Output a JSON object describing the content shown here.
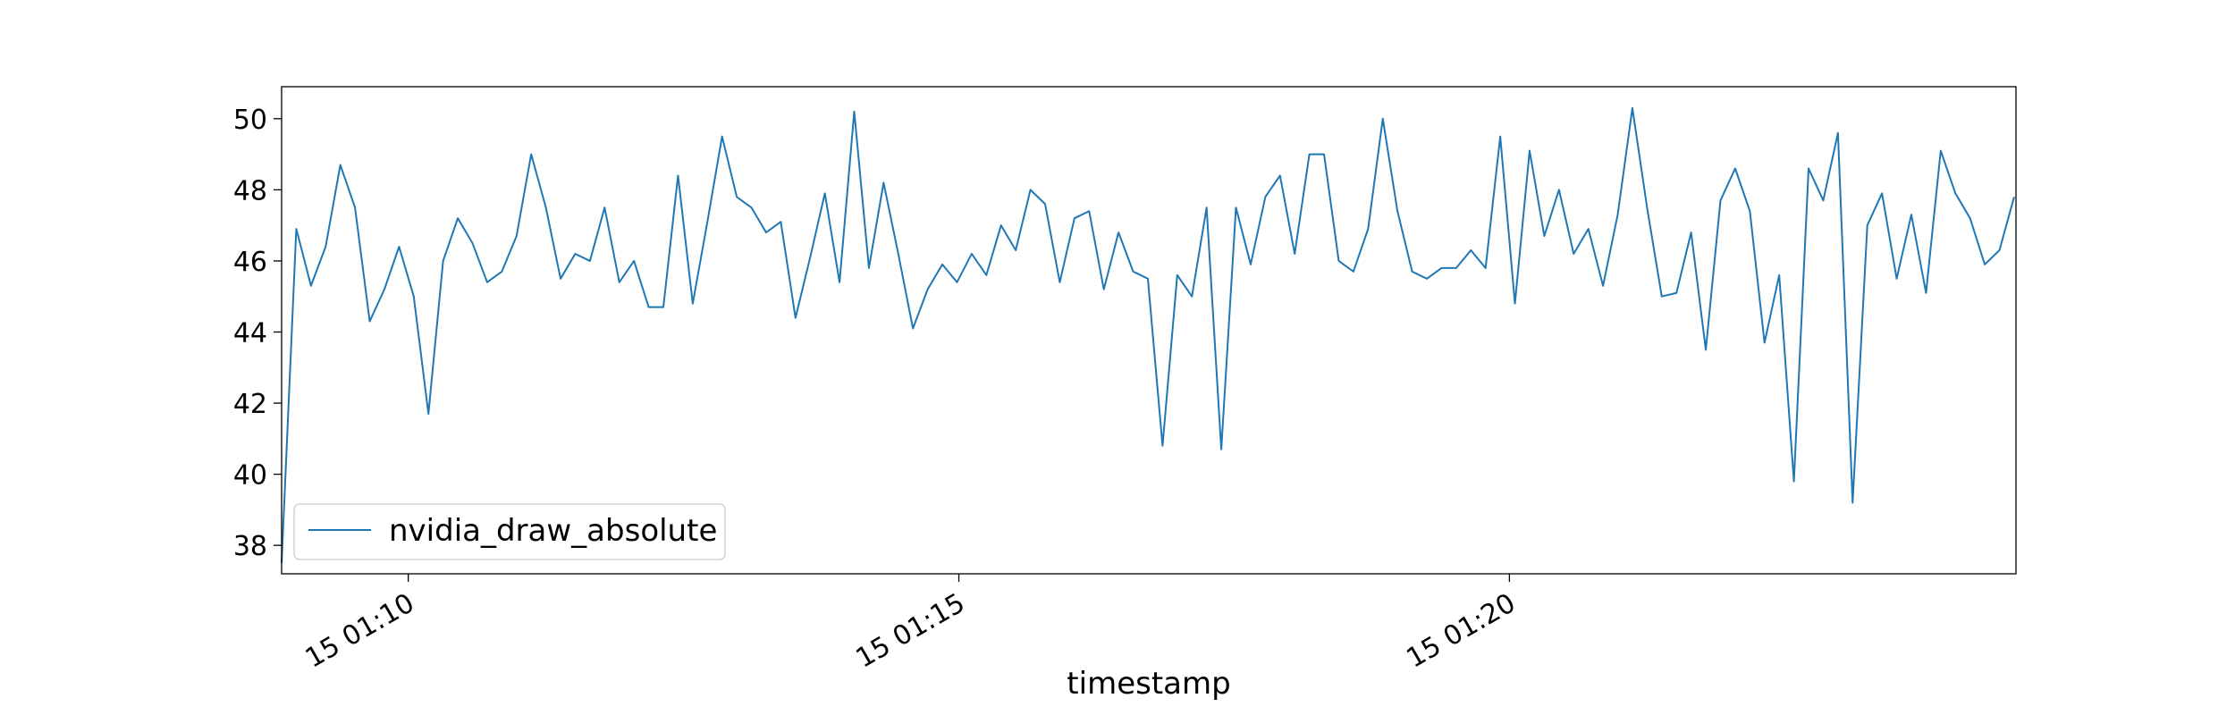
{
  "chart_data": {
    "type": "line",
    "xlabel": "timestamp",
    "ylabel": "",
    "ylim": [
      37.2,
      50.9
    ],
    "yticks": [
      38,
      40,
      42,
      44,
      46,
      48,
      50
    ],
    "xlim": [
      "15 01:08:51",
      "15 01:24:36"
    ],
    "xticks": [
      {
        "t": "15 01:10:00",
        "label": "15 01:10"
      },
      {
        "t": "15 01:15:00",
        "label": "15 01:15"
      },
      {
        "t": "15 01:20:00",
        "label": "15 01:20"
      }
    ],
    "grid": false,
    "legend_position": "bottom-left",
    "series": [
      {
        "name": "nvidia_draw_absolute",
        "color": "#1f77b4",
        "x_start": "15 01:08:51",
        "step_seconds": 8,
        "values": [
          37.5,
          46.9,
          45.3,
          46.4,
          48.7,
          47.5,
          44.3,
          45.2,
          46.4,
          45.0,
          41.7,
          46.0,
          47.2,
          46.5,
          45.4,
          45.7,
          46.7,
          49.0,
          47.5,
          45.5,
          46.2,
          46.0,
          47.5,
          45.4,
          46.0,
          44.7,
          44.7,
          48.4,
          44.8,
          47.1,
          49.5,
          47.8,
          47.5,
          46.8,
          47.1,
          44.4,
          46.1,
          47.9,
          45.4,
          50.2,
          45.8,
          48.2,
          46.2,
          44.1,
          45.2,
          45.9,
          45.4,
          46.2,
          45.6,
          47.0,
          46.3,
          48.0,
          47.6,
          45.4,
          47.2,
          47.4,
          45.2,
          46.8,
          45.7,
          45.5,
          40.8,
          45.6,
          45.0,
          47.5,
          40.7,
          47.5,
          45.9,
          47.8,
          48.4,
          46.2,
          49.0,
          49.0,
          46.0,
          45.7,
          46.9,
          50.0,
          47.4,
          45.7,
          45.5,
          45.8,
          45.8,
          46.3,
          45.8,
          49.5,
          44.8,
          49.1,
          46.7,
          48.0,
          46.2,
          46.9,
          45.3,
          47.3,
          50.3,
          47.5,
          45.0,
          45.1,
          46.8,
          43.5,
          47.7,
          48.6,
          47.4,
          43.7,
          45.6,
          39.8,
          48.6,
          47.7,
          49.6,
          39.2,
          47.0,
          47.9,
          45.5,
          47.3,
          45.1,
          49.1,
          47.9,
          47.2,
          45.9,
          46.3,
          47.8
        ]
      }
    ]
  }
}
